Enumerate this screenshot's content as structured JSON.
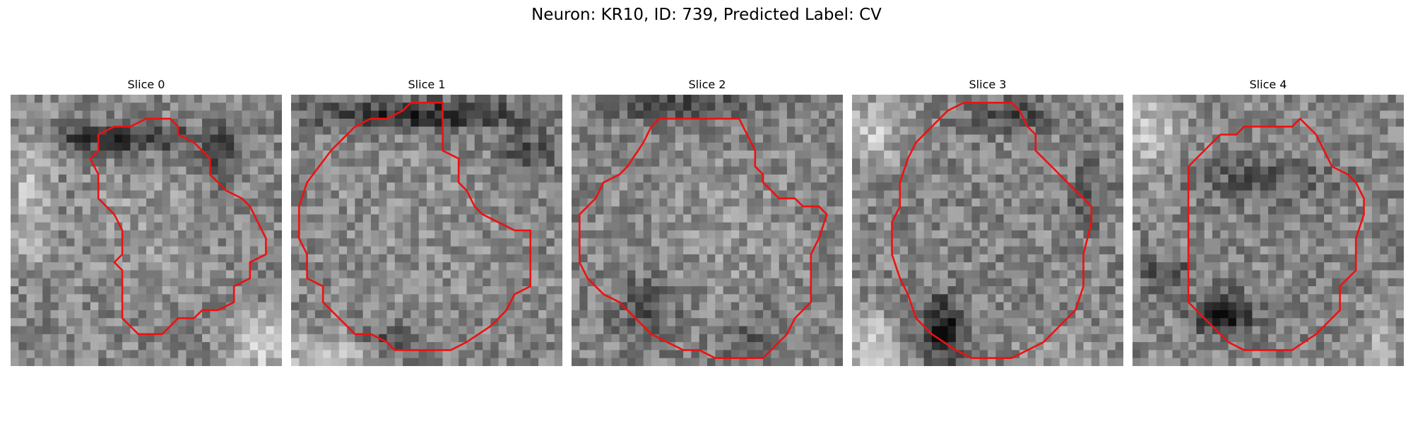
{
  "title": "Neuron: KR10, ID: 739, Predicted Label: CV",
  "colors": {
    "contour": "#ee1111",
    "background": "#ffffff"
  },
  "panels": [
    {
      "title": "Slice 0",
      "contour": [
        [
          11,
          7
        ],
        [
          11,
          5
        ],
        [
          13,
          4
        ],
        [
          15,
          4
        ],
        [
          17,
          3
        ],
        [
          20,
          3
        ],
        [
          21,
          4
        ],
        [
          21,
          5
        ],
        [
          23,
          6
        ],
        [
          25,
          8
        ],
        [
          25,
          10
        ],
        [
          27,
          12
        ],
        [
          29,
          13
        ],
        [
          30,
          14
        ],
        [
          31,
          16
        ],
        [
          32,
          18
        ],
        [
          32,
          20
        ],
        [
          30,
          21
        ],
        [
          30,
          23
        ],
        [
          28,
          24
        ],
        [
          28,
          26
        ],
        [
          26,
          27
        ],
        [
          24,
          27
        ],
        [
          23,
          28
        ],
        [
          21,
          28
        ],
        [
          19,
          30
        ],
        [
          16,
          30
        ],
        [
          15,
          29
        ],
        [
          14,
          28
        ],
        [
          14,
          22
        ],
        [
          13,
          21
        ],
        [
          14,
          20
        ],
        [
          14,
          17
        ],
        [
          13,
          15
        ],
        [
          11,
          13
        ],
        [
          11,
          10
        ],
        [
          10,
          8
        ],
        [
          11,
          7
        ]
      ],
      "pattern": "ring-top"
    },
    {
      "title": "Slice 1",
      "contour": [
        [
          5,
          7
        ],
        [
          8,
          4
        ],
        [
          10,
          3
        ],
        [
          12,
          3
        ],
        [
          14,
          2
        ],
        [
          15,
          1
        ],
        [
          19,
          1
        ],
        [
          19,
          7
        ],
        [
          21,
          8
        ],
        [
          21,
          11
        ],
        [
          22,
          12
        ],
        [
          23,
          14
        ],
        [
          24,
          15
        ],
        [
          26,
          16
        ],
        [
          28,
          17
        ],
        [
          30,
          17
        ],
        [
          30,
          24
        ],
        [
          28,
          25
        ],
        [
          27,
          27
        ],
        [
          25,
          29
        ],
        [
          22,
          31
        ],
        [
          20,
          32
        ],
        [
          13,
          32
        ],
        [
          12,
          31
        ],
        [
          10,
          30
        ],
        [
          8,
          30
        ],
        [
          6,
          28
        ],
        [
          4,
          26
        ],
        [
          4,
          24
        ],
        [
          2,
          23
        ],
        [
          2,
          20
        ],
        [
          1,
          18
        ],
        [
          1,
          14
        ],
        [
          2,
          11
        ],
        [
          5,
          7
        ]
      ],
      "pattern": "ring-top-dark"
    },
    {
      "title": "Slice 2",
      "contour": [
        [
          1,
          15
        ],
        [
          3,
          13
        ],
        [
          4,
          11
        ],
        [
          6,
          10
        ],
        [
          7,
          9
        ],
        [
          9,
          6
        ],
        [
          10,
          4
        ],
        [
          11,
          3
        ],
        [
          13,
          3
        ],
        [
          15,
          3
        ],
        [
          17,
          3
        ],
        [
          19,
          3
        ],
        [
          21,
          3
        ],
        [
          22,
          5
        ],
        [
          23,
          7
        ],
        [
          23,
          9
        ],
        [
          24,
          10
        ],
        [
          24,
          11
        ],
        [
          25,
          12
        ],
        [
          26,
          13
        ],
        [
          28,
          13
        ],
        [
          29,
          14
        ],
        [
          31,
          14
        ],
        [
          32,
          15
        ],
        [
          31,
          18
        ],
        [
          30,
          20
        ],
        [
          30,
          24
        ],
        [
          30,
          26
        ],
        [
          28,
          28
        ],
        [
          27,
          30
        ],
        [
          26,
          31
        ],
        [
          25,
          32
        ],
        [
          24,
          33
        ],
        [
          21,
          33
        ],
        [
          18,
          33
        ],
        [
          16,
          32
        ],
        [
          14,
          32
        ],
        [
          12,
          31
        ],
        [
          10,
          30
        ],
        [
          8,
          28
        ],
        [
          6,
          26
        ],
        [
          4,
          25
        ],
        [
          2,
          23
        ],
        [
          1,
          21
        ],
        [
          1,
          18
        ],
        [
          1,
          15
        ]
      ],
      "pattern": "noisy"
    },
    {
      "title": "Slice 3",
      "contour": [
        [
          7,
          8
        ],
        [
          8,
          6
        ],
        [
          10,
          4
        ],
        [
          12,
          2
        ],
        [
          14,
          1
        ],
        [
          17,
          1
        ],
        [
          20,
          1
        ],
        [
          21,
          2
        ],
        [
          22,
          4
        ],
        [
          23,
          5
        ],
        [
          23,
          7
        ],
        [
          25,
          9
        ],
        [
          27,
          11
        ],
        [
          29,
          13
        ],
        [
          30,
          14
        ],
        [
          30,
          16
        ],
        [
          29,
          20
        ],
        [
          29,
          24
        ],
        [
          28,
          27
        ],
        [
          26,
          29
        ],
        [
          24,
          31
        ],
        [
          22,
          32
        ],
        [
          20,
          33
        ],
        [
          18,
          33
        ],
        [
          15,
          33
        ],
        [
          13,
          32
        ],
        [
          10,
          30
        ],
        [
          8,
          28
        ],
        [
          7,
          25
        ],
        [
          6,
          23
        ],
        [
          5,
          20
        ],
        [
          5,
          16
        ],
        [
          6,
          14
        ],
        [
          6,
          11
        ],
        [
          7,
          8
        ]
      ],
      "pattern": "ring-bottom"
    },
    {
      "title": "Slice 4",
      "contour": [
        [
          7,
          9
        ],
        [
          9,
          7
        ],
        [
          11,
          5
        ],
        [
          13,
          5
        ],
        [
          14,
          4
        ],
        [
          17,
          4
        ],
        [
          20,
          4
        ],
        [
          21,
          3
        ],
        [
          22,
          4
        ],
        [
          23,
          5
        ],
        [
          24,
          7
        ],
        [
          25,
          9
        ],
        [
          27,
          10
        ],
        [
          28,
          11
        ],
        [
          29,
          13
        ],
        [
          29,
          15
        ],
        [
          28,
          18
        ],
        [
          28,
          22
        ],
        [
          26,
          24
        ],
        [
          26,
          27
        ],
        [
          24,
          29
        ],
        [
          23,
          30
        ],
        [
          20,
          32
        ],
        [
          17,
          32
        ],
        [
          14,
          32
        ],
        [
          12,
          31
        ],
        [
          11,
          30
        ],
        [
          10,
          29
        ],
        [
          9,
          28
        ],
        [
          8,
          27
        ],
        [
          7,
          26
        ],
        [
          7,
          23
        ],
        [
          7,
          19
        ],
        [
          7,
          15
        ],
        [
          7,
          9
        ]
      ],
      "pattern": "diag-dark"
    }
  ]
}
